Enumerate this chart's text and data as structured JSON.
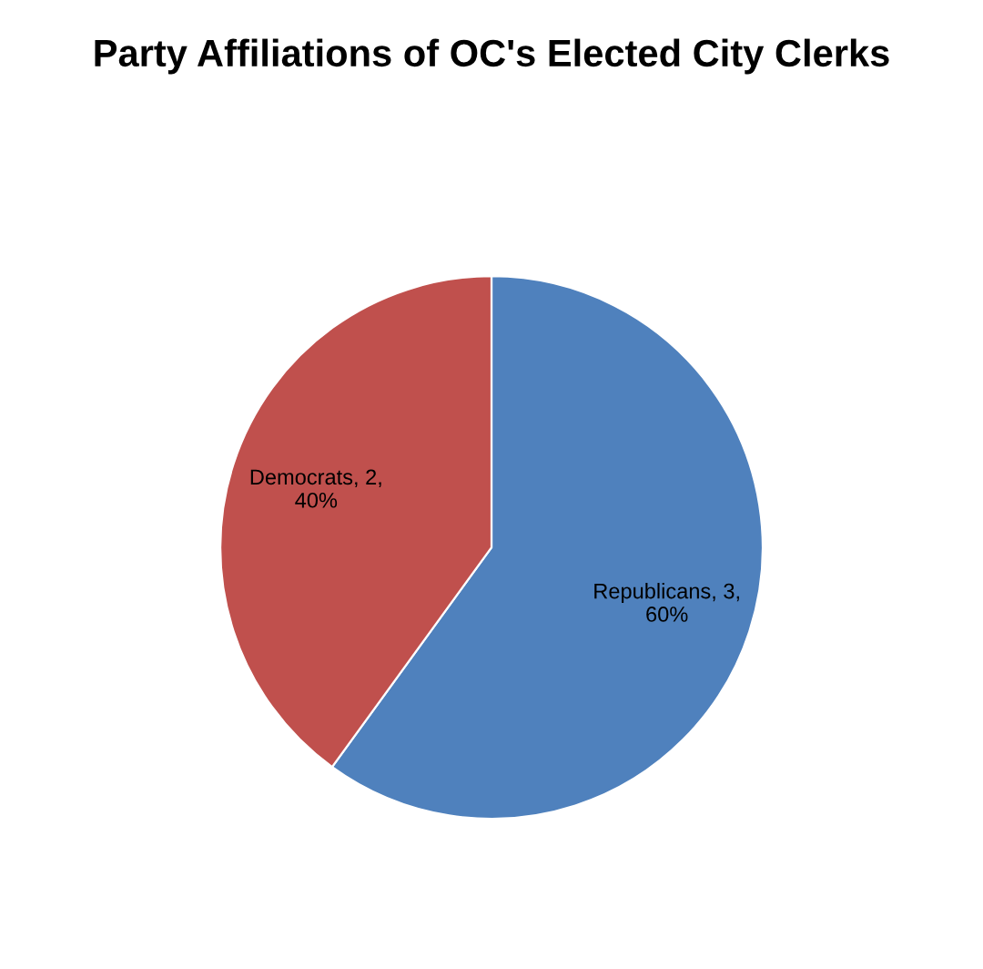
{
  "chart_data": {
    "type": "pie",
    "title": "Party Affiliations of OC's Elected City Clerks",
    "categories": [
      "Republicans",
      "Democrats"
    ],
    "values": [
      3,
      2
    ],
    "colors": [
      "#4f81bd",
      "#c0504d"
    ],
    "value_labels": [
      "3,\n60%",
      "2,\n40%"
    ],
    "legend": false
  }
}
